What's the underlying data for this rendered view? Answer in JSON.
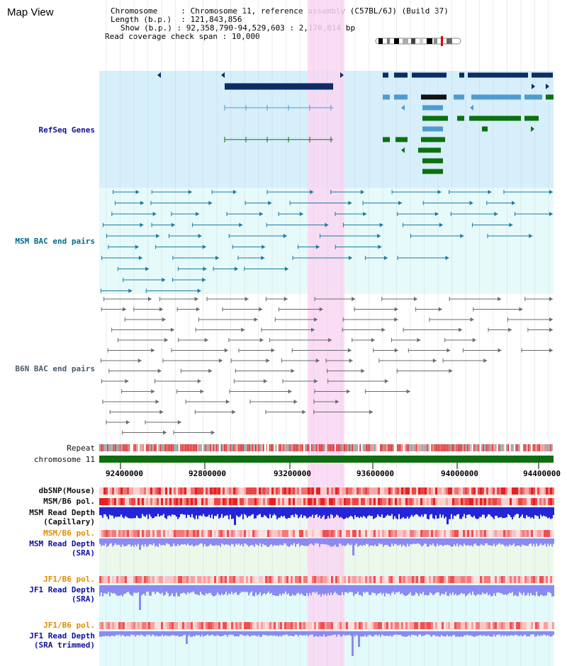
{
  "page": {
    "title": "Map View",
    "info": {
      "chromosome_key": "Chromosome",
      "chromosome_val": "Chromosome 11, reference assembly (C57BL/6J) (Build 37)",
      "length_key": "Length (b.p.)",
      "length_val": "121,843,856",
      "show_key": "Show (b.p.)",
      "show_val": "92,358,790-94,529,603 : 2,170,814 bp",
      "coverage_key": "Read coverage check span",
      "coverage_val": "10,000"
    }
  },
  "tracks": {
    "refseq": "RefSeq Genes",
    "msm_bac": "MSM BAC end pairs",
    "b6n_bac": "B6N BAC end pairs",
    "repeat": "Repeat",
    "chromosome": "chromosome 11",
    "dbsnp": "dbSNP(Mouse)",
    "msm_b6_pol_1": "MSM/B6 pol.",
    "msm_read_depth_cap_1": "MSM Read Depth",
    "msm_read_depth_cap_2": "(Capillary)",
    "msm_b6_pol_2": "MSM/B6 pol.",
    "msm_read_depth_sra_1": "MSM Read Depth",
    "msm_read_depth_sra_2": "(SRA)",
    "jf1_b6_pol_1": "JF1/B6 pol.",
    "jf1_read_depth_sra_1": "JF1 Read Depth",
    "jf1_read_depth_sra_2": "(SRA)",
    "jf1_b6_pol_2": "JF1/B6 pol.",
    "jf1_read_depth_trim_1": "JF1 Read Depth",
    "jf1_read_depth_trim_2": "(SRA trimmed)"
  },
  "axis": {
    "ticks": [
      "92400000",
      "92800000",
      "93200000",
      "93600000",
      "94000000",
      "94400000"
    ]
  },
  "colors": {
    "refseq_bg": "#d6effa",
    "bac_bg": "#e6fafa",
    "highlight": "#f9d6f2",
    "gene_navy": "#0b2d64",
    "gene_steel": "#4f9bd0",
    "gene_green": "#0d6f10",
    "bac_teal": "#1a7aa0",
    "bac_gray": "#6b6b6b",
    "chrom_green": "#0f6e0f",
    "depth_blue": "#2424d8",
    "depth_lilac": "#8a8af2"
  }
}
